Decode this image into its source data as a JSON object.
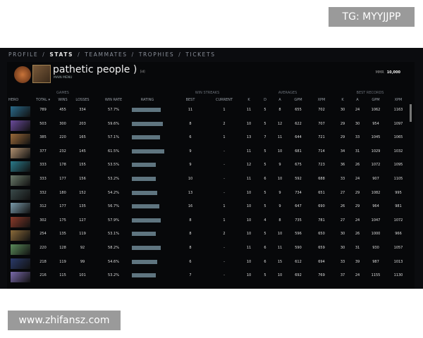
{
  "watermarks": {
    "top": "TG: MYYJJPP",
    "bottom": "www.zhifansz.com"
  },
  "nav": [
    {
      "label": "PROFILE"
    },
    {
      "label": "STATS",
      "active": true
    },
    {
      "label": "TEAMMATES"
    },
    {
      "label": "TROPHIES"
    },
    {
      "label": "TICKETS"
    }
  ],
  "profile": {
    "name": "pathetic people )",
    "tag": "[id]",
    "subtitle": "MAIN MENU",
    "mmr_label": "MMR",
    "mmr_value": "10,000"
  },
  "groups": {
    "games": "GAMES",
    "win_streaks": "WIN STREAKS",
    "averages": "AVERAGES",
    "best_records": "BEST RECORDS"
  },
  "headers": [
    "HERO",
    "TOTAL ▾",
    "WINS",
    "LOSSES",
    "WIN RATE",
    "RATING",
    "BEST",
    "CURRENT",
    "K",
    "D",
    "A",
    "GPM",
    "XPM",
    "K",
    "A",
    "GPM",
    "XPM"
  ],
  "rating_color": "#5f7580",
  "rows": [
    {
      "hero_color": "#2a6a8a",
      "rating_fill": 0.82,
      "cells": [
        "789",
        "455",
        "334",
        "57.7%",
        "11",
        "1",
        "11",
        "5",
        "8",
        "655",
        "702",
        "30",
        "24",
        "1062",
        "1163"
      ]
    },
    {
      "hero_color": "#6a4a9a",
      "rating_fill": 0.88,
      "cells": [
        "503",
        "300",
        "203",
        "59.6%",
        "8",
        "2",
        "10",
        "5",
        "12",
        "622",
        "707",
        "29",
        "30",
        "954",
        "1097"
      ]
    },
    {
      "hero_color": "#9a6a3a",
      "rating_fill": 0.8,
      "cells": [
        "385",
        "220",
        "165",
        "57.1%",
        "6",
        "1",
        "13",
        "7",
        "11",
        "644",
        "721",
        "29",
        "33",
        "1045",
        "1065"
      ]
    },
    {
      "hero_color": "#b09070",
      "rating_fill": 0.92,
      "cells": [
        "377",
        "232",
        "145",
        "61.5%",
        "9",
        "-",
        "11",
        "5",
        "10",
        "681",
        "714",
        "34",
        "31",
        "1029",
        "1032"
      ]
    },
    {
      "hero_color": "#2a7a8a",
      "rating_fill": 0.68,
      "cells": [
        "333",
        "178",
        "155",
        "53.5%",
        "9",
        "-",
        "12",
        "5",
        "9",
        "675",
        "723",
        "36",
        "26",
        "1072",
        "1095"
      ]
    },
    {
      "hero_color": "#6a7a6a",
      "rating_fill": 0.68,
      "cells": [
        "333",
        "177",
        "156",
        "53.2%",
        "10",
        "-",
        "11",
        "6",
        "10",
        "592",
        "688",
        "33",
        "24",
        "907",
        "1105"
      ]
    },
    {
      "hero_color": "#3a4a4a",
      "rating_fill": 0.72,
      "cells": [
        "332",
        "180",
        "152",
        "54.2%",
        "13",
        "-",
        "10",
        "5",
        "9",
        "734",
        "651",
        "27",
        "29",
        "1082",
        "995"
      ]
    },
    {
      "hero_color": "#7a9aaa",
      "rating_fill": 0.78,
      "cells": [
        "312",
        "177",
        "135",
        "56.7%",
        "16",
        "1",
        "10",
        "5",
        "9",
        "647",
        "690",
        "26",
        "29",
        "964",
        "981"
      ]
    },
    {
      "hero_color": "#8a3a2a",
      "rating_fill": 0.82,
      "cells": [
        "302",
        "175",
        "127",
        "57.9%",
        "8",
        "1",
        "10",
        "4",
        "8",
        "735",
        "781",
        "27",
        "24",
        "1047",
        "1072"
      ]
    },
    {
      "hero_color": "#8a6a3a",
      "rating_fill": 0.68,
      "cells": [
        "254",
        "135",
        "119",
        "53.1%",
        "8",
        "2",
        "10",
        "5",
        "10",
        "596",
        "650",
        "30",
        "26",
        "1000",
        "966"
      ]
    },
    {
      "hero_color": "#5a8a5a",
      "rating_fill": 0.82,
      "cells": [
        "220",
        "128",
        "92",
        "58.2%",
        "8",
        "-",
        "11",
        "6",
        "11",
        "590",
        "659",
        "30",
        "31",
        "930",
        "1057"
      ]
    },
    {
      "hero_color": "#2a3a6a",
      "rating_fill": 0.72,
      "cells": [
        "218",
        "119",
        "99",
        "54.6%",
        "6",
        "-",
        "10",
        "6",
        "15",
        "612",
        "694",
        "33",
        "39",
        "987",
        "1013"
      ]
    },
    {
      "hero_color": "#7a6aaa",
      "rating_fill": 0.68,
      "cells": [
        "216",
        "115",
        "101",
        "53.2%",
        "7",
        "-",
        "10",
        "5",
        "10",
        "692",
        "769",
        "37",
        "24",
        "1155",
        "1130"
      ]
    }
  ]
}
